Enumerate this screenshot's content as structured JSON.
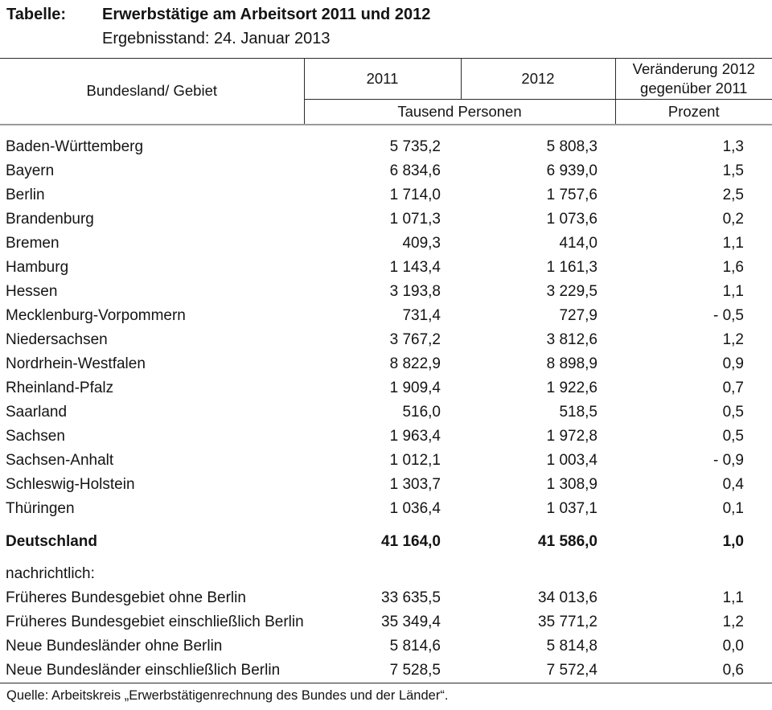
{
  "header": {
    "label": "Tabelle:",
    "title": "Erwerbstätige am Arbeitsort 2011 und 2012",
    "subtitle": "Ergebnisstand: 24. Januar 2013"
  },
  "table": {
    "columns": {
      "region": "Bundesland/ Gebiet",
      "y2011": "2011",
      "y2012": "2012",
      "change_line1": "Veränderung 2012",
      "change_line2": "gegenüber 2011",
      "unit_thousands": "Tausend Personen",
      "unit_percent": "Prozent"
    },
    "rows": [
      {
        "name": "Baden-Württemberg",
        "v2011": "5 735,2",
        "v2012": "5 808,3",
        "change": "1,3"
      },
      {
        "name": "Bayern",
        "v2011": "6 834,6",
        "v2012": "6 939,0",
        "change": "1,5"
      },
      {
        "name": "Berlin",
        "v2011": "1 714,0",
        "v2012": "1 757,6",
        "change": "2,5"
      },
      {
        "name": "Brandenburg",
        "v2011": "1 071,3",
        "v2012": "1 073,6",
        "change": "0,2"
      },
      {
        "name": "Bremen",
        "v2011": "409,3",
        "v2012": "414,0",
        "change": "1,1"
      },
      {
        "name": "Hamburg",
        "v2011": "1 143,4",
        "v2012": "1 161,3",
        "change": "1,6"
      },
      {
        "name": "Hessen",
        "v2011": "3 193,8",
        "v2012": "3 229,5",
        "change": "1,1"
      },
      {
        "name": "Mecklenburg-Vorpommern",
        "v2011": "731,4",
        "v2012": "727,9",
        "change": "- 0,5"
      },
      {
        "name": "Niedersachsen",
        "v2011": "3 767,2",
        "v2012": "3 812,6",
        "change": "1,2"
      },
      {
        "name": "Nordrhein-Westfalen",
        "v2011": "8 822,9",
        "v2012": "8 898,9",
        "change": "0,9"
      },
      {
        "name": "Rheinland-Pfalz",
        "v2011": "1 909,4",
        "v2012": "1 922,6",
        "change": "0,7"
      },
      {
        "name": "Saarland",
        "v2011": "516,0",
        "v2012": "518,5",
        "change": "0,5"
      },
      {
        "name": "Sachsen",
        "v2011": "1 963,4",
        "v2012": "1 972,8",
        "change": "0,5"
      },
      {
        "name": "Sachsen-Anhalt",
        "v2011": "1 012,1",
        "v2012": "1 003,4",
        "change": "- 0,9"
      },
      {
        "name": "Schleswig-Holstein",
        "v2011": "1 303,7",
        "v2012": "1 308,9",
        "change": "0,4"
      },
      {
        "name": "Thüringen",
        "v2011": "1 036,4",
        "v2012": "1 037,1",
        "change": "0,1"
      }
    ],
    "total_row": {
      "name": "Deutschland",
      "v2011": "41 164,0",
      "v2012": "41 586,0",
      "change": "1,0"
    },
    "section_label": "nachrichtlich:",
    "memo_rows": [
      {
        "name": "Früheres Bundesgebiet ohne Berlin",
        "v2011": "33 635,5",
        "v2012": "34 013,6",
        "change": "1,1"
      },
      {
        "name": "Früheres Bundesgebiet einschließlich Berlin",
        "v2011": "35 349,4",
        "v2012": "35 771,2",
        "change": "1,2"
      },
      {
        "name": "Neue Bundesländer ohne Berlin",
        "v2011": "5 814,6",
        "v2012": "5 814,8",
        "change": "0,0"
      },
      {
        "name": "Neue Bundesländer einschließlich Berlin",
        "v2011": "7 528,5",
        "v2012": "7 572,4",
        "change": "0,6"
      }
    ]
  },
  "footer": {
    "source": "Quelle: Arbeitskreis „Erwerbstätigenrechnung des Bundes und der Länder“."
  },
  "colors": {
    "text": "#141414",
    "rule_dark": "#2b2b2b",
    "rule_gray": "#9a9a9a",
    "background": "#ffffff"
  }
}
